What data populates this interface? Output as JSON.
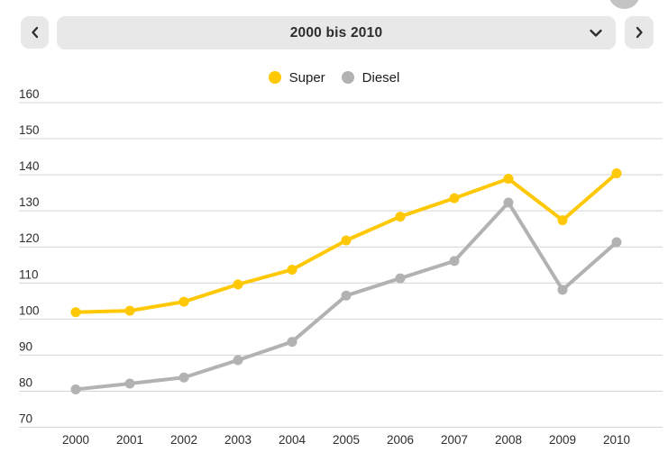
{
  "toolbar": {
    "range_value": "2000 bis 2010"
  },
  "colors": {
    "control_bg": "#e8e8e8",
    "control_text": "#2d2d2d",
    "floating_circle": "#c3c3c3",
    "grid": "#d4d4d4",
    "axis_text": "#2d2d2d",
    "super": "#FFC805",
    "diesel": "#b2b2b2"
  },
  "chart_data": {
    "type": "line",
    "title": "",
    "categories": [
      "2000",
      "2001",
      "2002",
      "2003",
      "2004",
      "2005",
      "2006",
      "2007",
      "2008",
      "2009",
      "2010"
    ],
    "series": [
      {
        "name": "Super",
        "color": "#FFC805",
        "values": [
          101.9,
          102.3,
          104.8,
          109.6,
          113.7,
          121.8,
          128.4,
          133.5,
          138.9,
          127.4,
          140.4
        ]
      },
      {
        "name": "Diesel",
        "color": "#b2b2b2",
        "values": [
          80.5,
          82.1,
          83.8,
          88.6,
          93.7,
          106.5,
          111.3,
          116.1,
          132.3,
          108.1,
          121.3
        ]
      }
    ],
    "ylim": [
      70,
      160
    ],
    "yticks": [
      160,
      150,
      140,
      130,
      120,
      110,
      100,
      90,
      80,
      70
    ],
    "grid": true,
    "legend_position": "top-center",
    "xlabel": "",
    "ylabel": ""
  }
}
